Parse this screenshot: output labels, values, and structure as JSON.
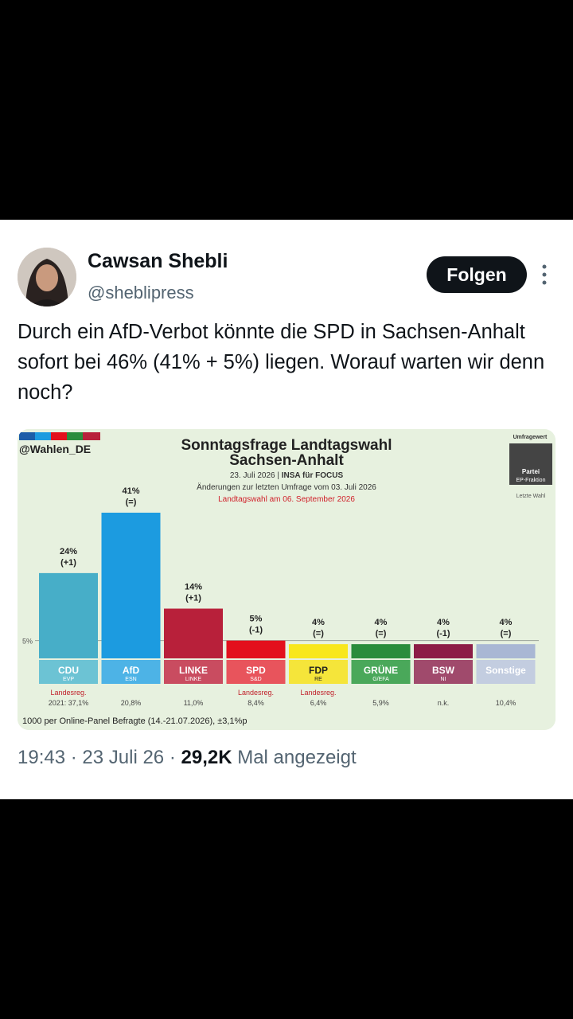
{
  "tweet": {
    "author_name": "Cawsan Shebli",
    "handle": "@sheblipress",
    "follow_label": "Folgen",
    "more_icon": "more-vertical-icon",
    "text": "Durch ein AfD-Verbot könnte die SPD in Sachsen-Anhalt sofort bei 46% (41% + 5%) liegen. Worauf warten wir denn noch?",
    "time": "19:43",
    "sep1": "·",
    "date": "23 Juli 26",
    "sep2": "·",
    "views": "29,2K",
    "views_suffix": " Mal angezeigt"
  },
  "chart_data": {
    "type": "bar",
    "brand": "@Wahlen_DE",
    "title": "Sonntagsfrage Landtagswahl",
    "subtitle": "Sachsen-Anhalt",
    "source_line_date": "23. Juli 2026 |",
    "source_line_inst": " INSA für FOCUS",
    "changes_note": "Änderungen zur letzten Umfrage vom 03. Juli 2026",
    "election_note": "Landtagswahl am 06. September 2026",
    "legend": {
      "top": "Umfragewert",
      "box_line1": "Partei",
      "box_line2": "EP-Fraktion",
      "bottom": "Letzte Wahl"
    },
    "threshold_label": "5%",
    "threshold": 5,
    "ylim": [
      0,
      45
    ],
    "categories": [
      "CDU",
      "AfD",
      "LINKE",
      "SPD",
      "FDP",
      "GRÜNE",
      "BSW",
      "Sonstige"
    ],
    "ep_groups": [
      "EVP",
      "ESN",
      "LINKE",
      "S&D",
      "RE",
      "G/EFA",
      "NI",
      ""
    ],
    "values": [
      24,
      41,
      14,
      5,
      4,
      4,
      4,
      4
    ],
    "value_labels": [
      "24%",
      "41%",
      "14%",
      "5%",
      "4%",
      "4%",
      "4%",
      "4%"
    ],
    "changes": [
      "(+1)",
      "(=)",
      "(+1)",
      "(-1)",
      "(=)",
      "(=)",
      "(-1)",
      "(=)"
    ],
    "last_election": [
      "2021: 37,1%",
      "20,8%",
      "11,0%",
      "8,4%",
      "6,4%",
      "5,9%",
      "n.k.",
      "10,4%"
    ],
    "government": [
      "Landesreg.",
      "",
      "",
      "Landesreg.",
      "Landesreg.",
      "",
      "",
      ""
    ],
    "colors": [
      "#47aec8",
      "#1c9be0",
      "#b8203a",
      "#e3101c",
      "#f8e71c",
      "#2a8c3c",
      "#8c1c46",
      "#a9b7d4"
    ],
    "label_colors": [
      "#6cc3d4",
      "#4db3e6",
      "#c94c60",
      "#e8545c",
      "#f5e53a",
      "#4aa85a",
      "#a04a6c",
      "#c3cde0"
    ],
    "label_text_colors": [
      "#ffffff",
      "#ffffff",
      "#ffffff",
      "#ffffff",
      "#222222",
      "#ffffff",
      "#ffffff",
      "#ffffff"
    ],
    "footnote": "1000 per Online-Panel Befragte (14.-21.07.2026), ±3,1%p"
  }
}
